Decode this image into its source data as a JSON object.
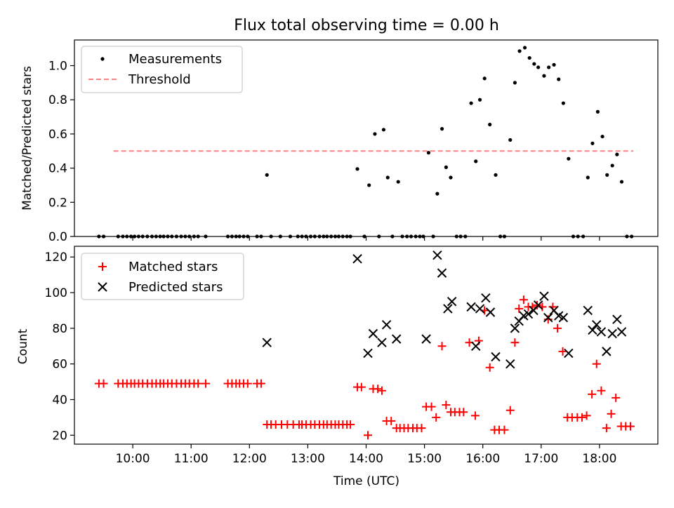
{
  "chart_data": [
    {
      "type": "scatter",
      "title": "Flux total observing time = 0.00 h",
      "ylabel": "Matched/Predicted stars",
      "xlabel": "",
      "ylim": [
        0,
        1.15
      ],
      "yticks": [
        0.0,
        0.2,
        0.4,
        0.6,
        0.8,
        1.0
      ],
      "ytick_labels": [
        "0.0",
        "0.2",
        "0.4",
        "0.6",
        "0.8",
        "1.0"
      ],
      "legend_location": "upper-left",
      "threshold": {
        "name": "Threshold",
        "value": 0.5,
        "x_start": 9.67,
        "x_end": 18.58,
        "color": "#ff8080",
        "style": "dashed"
      },
      "series": [
        {
          "name": "Measurements",
          "color": "#000000",
          "marker": "dot",
          "points": [
            [
              9.42,
              0
            ],
            [
              9.5,
              0
            ],
            [
              9.75,
              0
            ],
            [
              9.83,
              0
            ],
            [
              9.9,
              0
            ],
            [
              9.97,
              0
            ],
            [
              10.03,
              0
            ],
            [
              10.1,
              0
            ],
            [
              10.17,
              0
            ],
            [
              10.25,
              0
            ],
            [
              10.33,
              0
            ],
            [
              10.4,
              0
            ],
            [
              10.47,
              0
            ],
            [
              10.53,
              0
            ],
            [
              10.6,
              0
            ],
            [
              10.67,
              0
            ],
            [
              10.75,
              0
            ],
            [
              10.83,
              0
            ],
            [
              10.9,
              0
            ],
            [
              10.97,
              0
            ],
            [
              11.05,
              0
            ],
            [
              11.12,
              0
            ],
            [
              11.25,
              0
            ],
            [
              11.63,
              0
            ],
            [
              11.7,
              0
            ],
            [
              11.77,
              0
            ],
            [
              11.83,
              0
            ],
            [
              11.9,
              0
            ],
            [
              11.97,
              0
            ],
            [
              12.13,
              0
            ],
            [
              12.2,
              0
            ],
            [
              12.3,
              0.36
            ],
            [
              12.37,
              0
            ],
            [
              12.53,
              0
            ],
            [
              12.7,
              0
            ],
            [
              12.83,
              0
            ],
            [
              12.9,
              0
            ],
            [
              12.97,
              0
            ],
            [
              13.05,
              0
            ],
            [
              13.12,
              0
            ],
            [
              13.2,
              0
            ],
            [
              13.27,
              0
            ],
            [
              13.33,
              0
            ],
            [
              13.4,
              0
            ],
            [
              13.47,
              0
            ],
            [
              13.53,
              0
            ],
            [
              13.6,
              0
            ],
            [
              13.67,
              0
            ],
            [
              13.73,
              0
            ],
            [
              13.85,
              0.395
            ],
            [
              13.97,
              0
            ],
            [
              14.05,
              0.3
            ],
            [
              14.15,
              0.6
            ],
            [
              14.22,
              0
            ],
            [
              14.3,
              0.625
            ],
            [
              14.37,
              0.345
            ],
            [
              14.45,
              0
            ],
            [
              14.55,
              0.32
            ],
            [
              14.62,
              0
            ],
            [
              14.7,
              0
            ],
            [
              14.77,
              0
            ],
            [
              14.85,
              0
            ],
            [
              14.92,
              0
            ],
            [
              14.98,
              0
            ],
            [
              15.07,
              0.49
            ],
            [
              15.15,
              0
            ],
            [
              15.22,
              0.25
            ],
            [
              15.3,
              0.63
            ],
            [
              15.37,
              0.405
            ],
            [
              15.45,
              0.345
            ],
            [
              15.55,
              0
            ],
            [
              15.62,
              0
            ],
            [
              15.7,
              0
            ],
            [
              15.8,
              0.78
            ],
            [
              15.88,
              0.44
            ],
            [
              15.95,
              0.8
            ],
            [
              16.03,
              0.925
            ],
            [
              16.12,
              0.655
            ],
            [
              16.22,
              0.36
            ],
            [
              16.3,
              0
            ],
            [
              16.37,
              0
            ],
            [
              16.47,
              0.565
            ],
            [
              16.55,
              0.9
            ],
            [
              16.63,
              1.085
            ],
            [
              16.72,
              1.105
            ],
            [
              16.8,
              1.045
            ],
            [
              16.88,
              1.01
            ],
            [
              16.95,
              0.99
            ],
            [
              17.05,
              0.94
            ],
            [
              17.13,
              0.99
            ],
            [
              17.22,
              1.005
            ],
            [
              17.3,
              0.92
            ],
            [
              17.38,
              0.78
            ],
            [
              17.47,
              0.455
            ],
            [
              17.55,
              0
            ],
            [
              17.63,
              0
            ],
            [
              17.72,
              0
            ],
            [
              17.8,
              0.345
            ],
            [
              17.88,
              0.545
            ],
            [
              17.97,
              0.73
            ],
            [
              18.05,
              0.585
            ],
            [
              18.13,
              0.36
            ],
            [
              18.22,
              0.415
            ],
            [
              18.3,
              0.48
            ],
            [
              18.38,
              0.32
            ],
            [
              18.47,
              0
            ],
            [
              18.55,
              0
            ]
          ]
        }
      ]
    },
    {
      "type": "scatter",
      "title": "",
      "ylabel": "Count",
      "xlabel": "Time (UTC)",
      "ylim": [
        15,
        126
      ],
      "yticks": [
        20,
        40,
        60,
        80,
        100,
        120
      ],
      "ytick_labels": [
        "20",
        "40",
        "60",
        "80",
        "100",
        "120"
      ],
      "xlim": [
        9.0,
        19.0
      ],
      "xticks": [
        10,
        11,
        12,
        13,
        14,
        15,
        16,
        17,
        18
      ],
      "xtick_labels": [
        "10:00",
        "11:00",
        "12:00",
        "13:00",
        "14:00",
        "15:00",
        "16:00",
        "17:00",
        "18:00"
      ],
      "legend_location": "upper-left",
      "series": [
        {
          "name": "Matched stars",
          "color": "#ff0000",
          "marker": "plus",
          "points": [
            [
              9.42,
              49
            ],
            [
              9.5,
              49
            ],
            [
              9.75,
              49
            ],
            [
              9.83,
              49
            ],
            [
              9.9,
              49
            ],
            [
              9.97,
              49
            ],
            [
              10.03,
              49
            ],
            [
              10.1,
              49
            ],
            [
              10.17,
              49
            ],
            [
              10.25,
              49
            ],
            [
              10.33,
              49
            ],
            [
              10.4,
              49
            ],
            [
              10.47,
              49
            ],
            [
              10.53,
              49
            ],
            [
              10.6,
              49
            ],
            [
              10.67,
              49
            ],
            [
              10.75,
              49
            ],
            [
              10.83,
              49
            ],
            [
              10.9,
              49
            ],
            [
              10.97,
              49
            ],
            [
              11.05,
              49
            ],
            [
              11.12,
              49
            ],
            [
              11.25,
              49
            ],
            [
              11.63,
              49
            ],
            [
              11.7,
              49
            ],
            [
              11.77,
              49
            ],
            [
              11.83,
              49
            ],
            [
              11.9,
              49
            ],
            [
              11.97,
              49
            ],
            [
              12.13,
              49
            ],
            [
              12.2,
              49
            ],
            [
              12.3,
              26
            ],
            [
              12.37,
              26
            ],
            [
              12.45,
              26
            ],
            [
              12.55,
              26
            ],
            [
              12.65,
              26
            ],
            [
              12.75,
              26
            ],
            [
              12.85,
              26
            ],
            [
              12.9,
              26
            ],
            [
              12.97,
              26
            ],
            [
              13.05,
              26
            ],
            [
              13.12,
              26
            ],
            [
              13.2,
              26
            ],
            [
              13.27,
              26
            ],
            [
              13.33,
              26
            ],
            [
              13.4,
              26
            ],
            [
              13.47,
              26
            ],
            [
              13.53,
              26
            ],
            [
              13.6,
              26
            ],
            [
              13.67,
              26
            ],
            [
              13.73,
              26
            ],
            [
              13.85,
              47
            ],
            [
              13.92,
              47
            ],
            [
              14.03,
              20
            ],
            [
              14.12,
              46
            ],
            [
              14.2,
              46
            ],
            [
              14.27,
              45
            ],
            [
              14.35,
              28
            ],
            [
              14.43,
              28
            ],
            [
              14.52,
              24
            ],
            [
              14.58,
              24
            ],
            [
              14.65,
              24
            ],
            [
              14.72,
              24
            ],
            [
              14.8,
              24
            ],
            [
              14.87,
              24
            ],
            [
              14.95,
              24
            ],
            [
              15.03,
              36
            ],
            [
              15.12,
              36
            ],
            [
              15.2,
              30
            ],
            [
              15.3,
              70
            ],
            [
              15.37,
              37
            ],
            [
              15.45,
              33
            ],
            [
              15.52,
              33
            ],
            [
              15.6,
              33
            ],
            [
              15.67,
              33
            ],
            [
              15.77,
              72
            ],
            [
              15.87,
              31
            ],
            [
              15.93,
              73
            ],
            [
              16.03,
              90
            ],
            [
              16.12,
              58
            ],
            [
              16.2,
              23
            ],
            [
              16.28,
              23
            ],
            [
              16.37,
              23
            ],
            [
              16.47,
              34
            ],
            [
              16.55,
              72
            ],
            [
              16.62,
              91
            ],
            [
              16.7,
              96
            ],
            [
              16.78,
              92
            ],
            [
              16.85,
              92
            ],
            [
              16.93,
              93
            ],
            [
              17.02,
              92
            ],
            [
              17.12,
              85
            ],
            [
              17.2,
              92
            ],
            [
              17.28,
              80
            ],
            [
              17.37,
              67
            ],
            [
              17.45,
              30
            ],
            [
              17.53,
              30
            ],
            [
              17.62,
              30
            ],
            [
              17.7,
              30
            ],
            [
              17.78,
              31
            ],
            [
              17.87,
              43
            ],
            [
              17.95,
              60
            ],
            [
              18.03,
              45
            ],
            [
              18.12,
              24
            ],
            [
              18.2,
              32
            ],
            [
              18.28,
              41
            ],
            [
              18.37,
              25
            ],
            [
              18.45,
              25
            ],
            [
              18.53,
              25
            ]
          ]
        },
        {
          "name": "Predicted stars",
          "color": "#000000",
          "marker": "x",
          "points": [
            [
              12.3,
              72
            ],
            [
              13.85,
              119
            ],
            [
              14.03,
              66
            ],
            [
              14.12,
              77
            ],
            [
              14.27,
              72
            ],
            [
              14.35,
              82
            ],
            [
              14.52,
              74
            ],
            [
              15.03,
              74
            ],
            [
              15.22,
              121
            ],
            [
              15.3,
              111
            ],
            [
              15.4,
              91
            ],
            [
              15.47,
              95
            ],
            [
              15.8,
              92
            ],
            [
              15.88,
              70
            ],
            [
              15.95,
              91
            ],
            [
              16.05,
              97
            ],
            [
              16.13,
              89
            ],
            [
              16.22,
              64
            ],
            [
              16.47,
              60
            ],
            [
              16.55,
              80
            ],
            [
              16.62,
              84
            ],
            [
              16.7,
              87
            ],
            [
              16.78,
              88
            ],
            [
              16.87,
              90
            ],
            [
              16.95,
              93
            ],
            [
              17.05,
              98
            ],
            [
              17.12,
              86
            ],
            [
              17.22,
              90
            ],
            [
              17.3,
              87
            ],
            [
              17.38,
              86
            ],
            [
              17.47,
              66
            ],
            [
              17.8,
              90
            ],
            [
              17.88,
              79
            ],
            [
              17.95,
              82
            ],
            [
              18.03,
              78
            ],
            [
              18.12,
              67
            ],
            [
              18.22,
              77
            ],
            [
              18.3,
              85
            ],
            [
              18.38,
              78
            ]
          ]
        }
      ]
    }
  ]
}
